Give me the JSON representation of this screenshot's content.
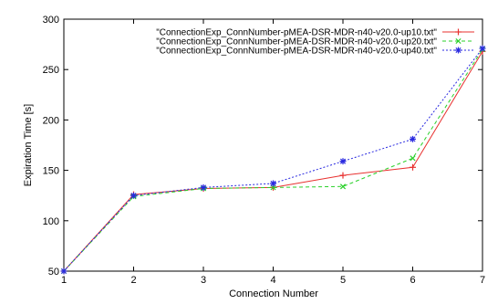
{
  "chart_data": {
    "type": "line",
    "xlabel": "Connection Number",
    "ylabel": "Expiration Time [s]",
    "xlim": [
      1,
      7
    ],
    "ylim": [
      50,
      300
    ],
    "xticks": [
      "1",
      "2",
      "3",
      "4",
      "5",
      "6",
      "7"
    ],
    "yticks": [
      "50",
      "100",
      "150",
      "200",
      "250",
      "300"
    ],
    "grid": false,
    "legend_position": "top-right",
    "x": [
      1,
      2,
      3,
      4,
      5,
      6,
      7
    ],
    "series": [
      {
        "name": "\"ConnectionExp_ConnNumber-pMEA-DSR-MDR-n40-v20.0-up10.txt\"",
        "values": [
          50,
          126,
          132,
          133,
          145,
          153,
          268
        ],
        "color": "#e8312f",
        "marker": "plus",
        "line": "solid"
      },
      {
        "name": "\"ConnectionExp_ConnNumber-pMEA-DSR-MDR-n40-v20.0-up20.txt\"",
        "values": [
          50,
          124,
          132,
          133,
          134,
          162,
          270
        ],
        "color": "#2bd12b",
        "marker": "cross",
        "line": "dashed"
      },
      {
        "name": "\"ConnectionExp_ConnNumber-pMEA-DSR-MDR-n40-v20.0-up40.txt\"",
        "values": [
          50,
          125,
          133,
          137,
          159,
          181,
          271
        ],
        "color": "#2a2ae0",
        "marker": "star",
        "line": "dotted"
      }
    ]
  }
}
